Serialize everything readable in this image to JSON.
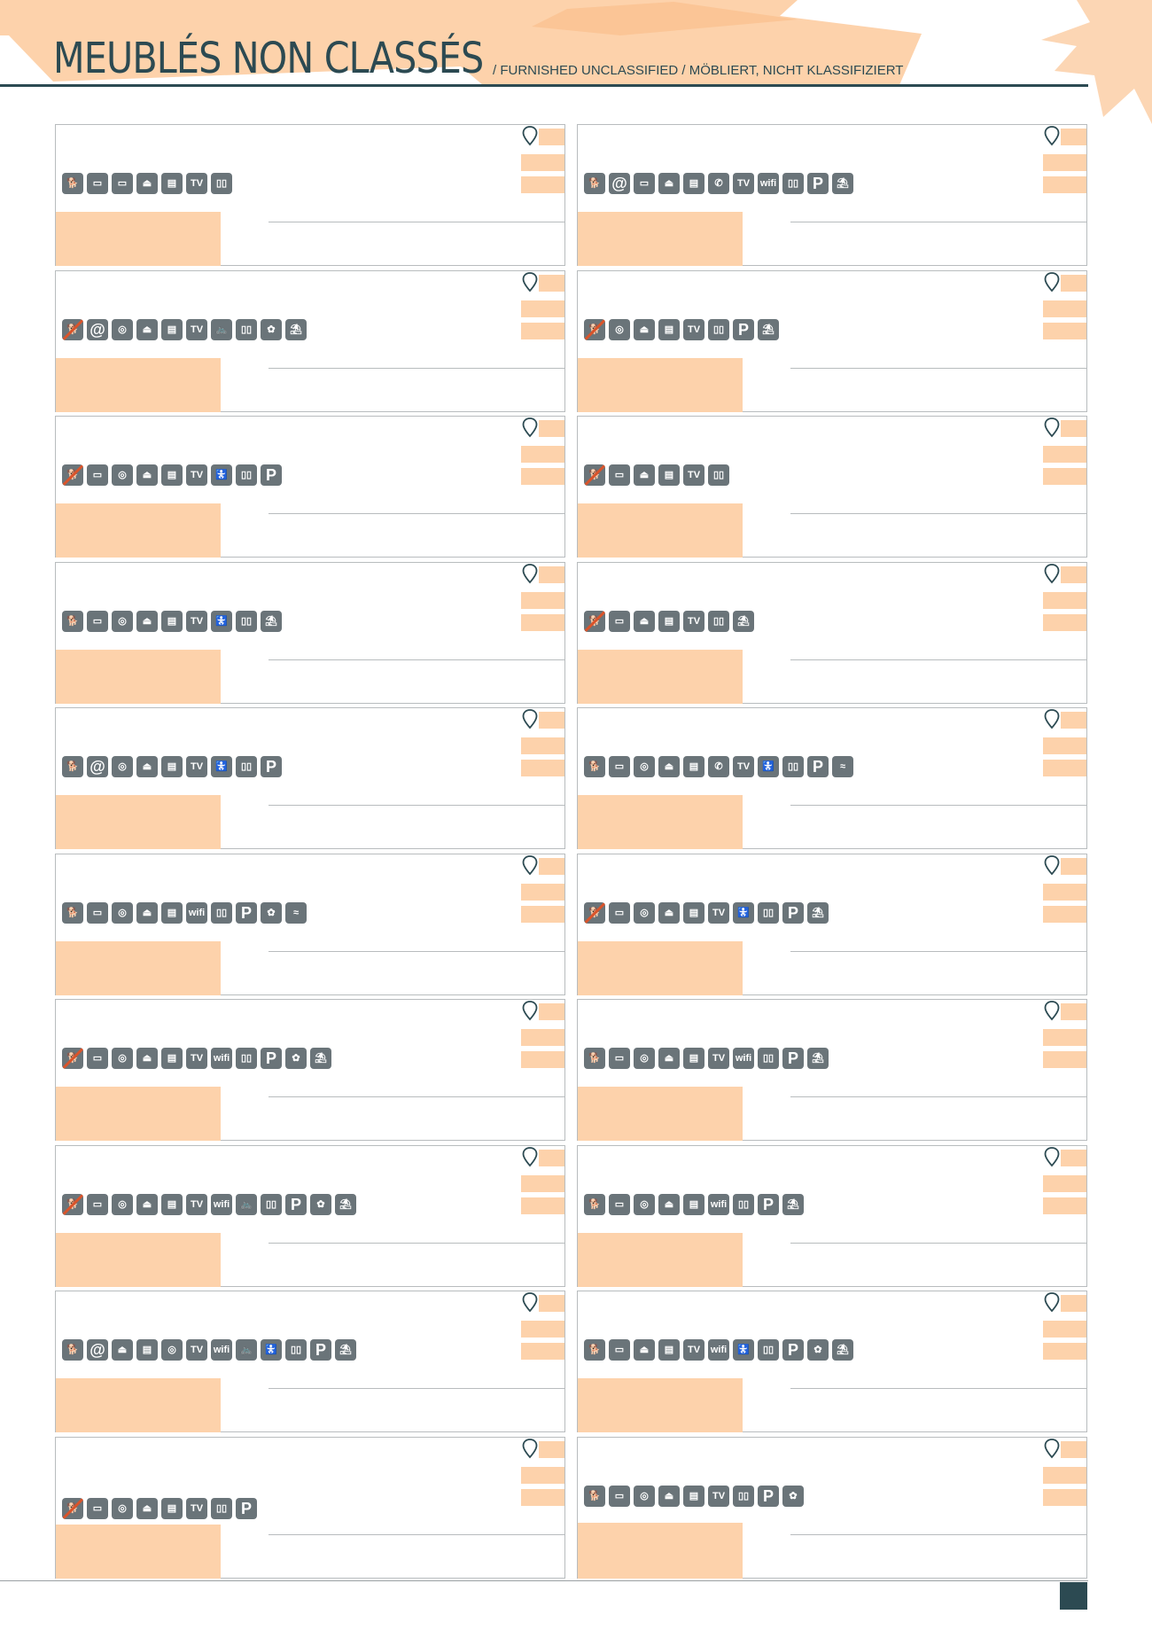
{
  "header": {
    "title": "MEUBLÉS NON CLASSÉS",
    "subtitle": "/ FURNISHED UNCLASSIFIED / MÖBLIERT, NICHT KLASSIFIZIERT"
  },
  "colors": {
    "accent": "#fdd2ab",
    "brand": "#2c4a52",
    "icon_bg": "#6a7479",
    "border": "#b8bcbe",
    "no_pets_slash": "#d9542b"
  },
  "icon_glyphs": {
    "pets": "🐕",
    "no-pets": "🐕",
    "internet": "@",
    "microwave": "▭",
    "washing-machine": "◎",
    "iron": "⏏",
    "dishwasher": "▤",
    "phone": "✆",
    "tv": "TV",
    "wifi": "wifi",
    "bike-storage": "🚲",
    "baby-equipment": "🚼",
    "linen": "▯▯",
    "parking": "P",
    "garden": "✿",
    "terrace": "⛱",
    "swimming-pool": "≈"
  },
  "cards": [
    {
      "icons": [
        "pets",
        "internet-off",
        "microwave",
        "iron",
        "dishwasher",
        "tv",
        "linen"
      ]
    },
    {
      "icons": [
        "pets",
        "internet",
        "microwave",
        "iron",
        "dishwasher",
        "phone",
        "tv",
        "wifi",
        "linen",
        "parking",
        "terrace"
      ]
    },
    {
      "icons": [
        "no-pets",
        "internet",
        "washing-machine",
        "iron",
        "dishwasher",
        "tv",
        "bike-storage",
        "linen",
        "garden",
        "terrace"
      ]
    },
    {
      "icons": [
        "no-pets",
        "washing-machine",
        "iron",
        "dishwasher",
        "tv",
        "linen",
        "parking",
        "terrace"
      ]
    },
    {
      "icons": [
        "no-pets",
        "microwave",
        "washing-machine",
        "iron",
        "dishwasher",
        "tv",
        "baby-equipment",
        "linen",
        "parking"
      ]
    },
    {
      "icons": [
        "no-pets",
        "microwave",
        "iron",
        "dishwasher",
        "tv",
        "linen"
      ]
    },
    {
      "icons": [
        "pets",
        "microwave",
        "washing-machine",
        "iron",
        "dishwasher",
        "tv",
        "baby-equipment",
        "linen",
        "terrace"
      ]
    },
    {
      "icons": [
        "no-pets",
        "microwave",
        "iron",
        "dishwasher",
        "tv",
        "linen",
        "terrace"
      ]
    },
    {
      "icons": [
        "pets",
        "internet",
        "washing-machine",
        "iron",
        "dishwasher",
        "tv",
        "baby-equipment",
        "linen",
        "parking"
      ]
    },
    {
      "icons": [
        "pets",
        "microwave",
        "washing-machine",
        "iron",
        "dishwasher",
        "phone",
        "tv",
        "baby-equipment",
        "linen",
        "parking",
        "swimming-pool"
      ]
    },
    {
      "icons": [
        "pets",
        "microwave",
        "washing-machine",
        "iron",
        "dishwasher",
        "wifi",
        "linen",
        "parking",
        "garden",
        "swimming-pool"
      ]
    },
    {
      "icons": [
        "no-pets",
        "microwave",
        "washing-machine",
        "iron",
        "dishwasher",
        "tv",
        "baby-equipment",
        "linen",
        "parking",
        "terrace"
      ]
    },
    {
      "icons": [
        "no-pets",
        "microwave",
        "washing-machine",
        "iron",
        "dishwasher",
        "tv",
        "wifi",
        "linen",
        "parking",
        "garden",
        "terrace"
      ]
    },
    {
      "icons": [
        "pets",
        "microwave",
        "washing-machine",
        "iron",
        "dishwasher",
        "tv",
        "wifi",
        "linen",
        "parking",
        "terrace"
      ]
    },
    {
      "icons": [
        "no-pets",
        "microwave",
        "washing-machine",
        "iron",
        "dishwasher",
        "tv",
        "wifi",
        "bike-storage",
        "linen",
        "parking",
        "garden",
        "terrace"
      ]
    },
    {
      "icons": [
        "pets",
        "microwave",
        "washing-machine",
        "iron",
        "dishwasher",
        "wifi",
        "linen",
        "parking",
        "terrace"
      ]
    },
    {
      "icons": [
        "pets",
        "internet",
        "iron",
        "dishwasher",
        "washing-machine",
        "tv",
        "wifi",
        "bike-storage",
        "baby-equipment",
        "linen",
        "parking",
        "terrace"
      ]
    },
    {
      "icons": [
        "pets",
        "microwave",
        "iron",
        "dishwasher",
        "tv",
        "wifi",
        "baby-equipment",
        "linen",
        "parking",
        "garden",
        "terrace"
      ]
    },
    {
      "icons": [
        "no-pets",
        "microwave",
        "washing-machine",
        "iron",
        "dishwasher",
        "tv",
        "linen",
        "parking"
      ]
    },
    {
      "icons": [
        "pets",
        "microwave",
        "washing-machine",
        "iron",
        "dishwasher",
        "tv",
        "linen",
        "parking",
        "garden"
      ]
    }
  ]
}
